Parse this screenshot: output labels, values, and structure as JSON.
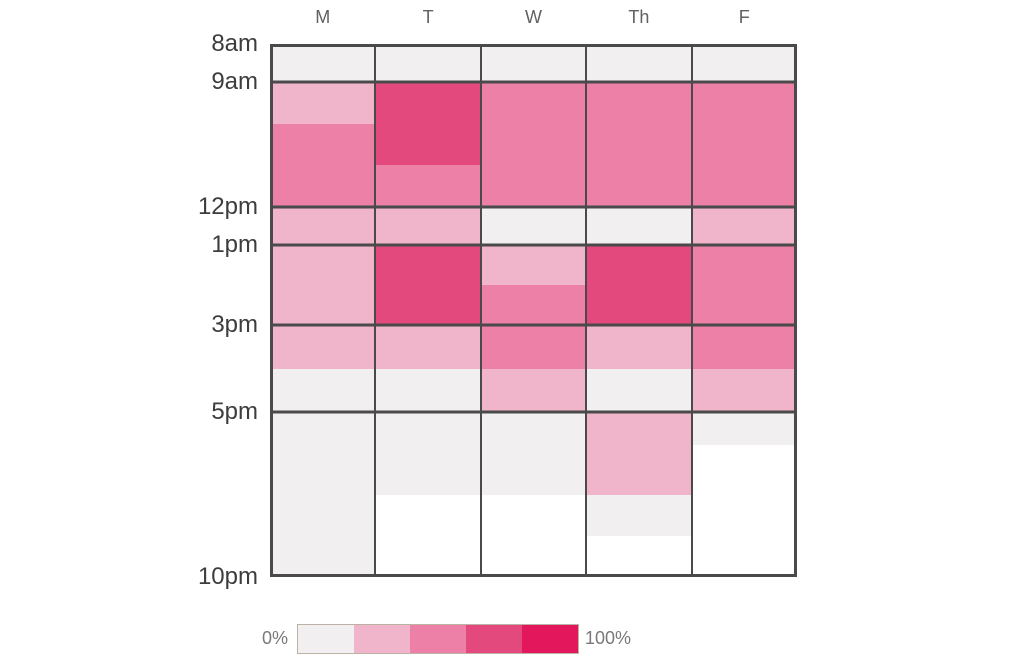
{
  "chart_data": {
    "type": "heatmap",
    "title": "",
    "description": "Weekly time-of-day intensity heatmap, Monday through Friday, 8am to 10pm, shaded by percent from 0% (light gray) to 100% (crimson)",
    "x_axis": {
      "categories": [
        "M",
        "T",
        "W",
        "Th",
        "F"
      ]
    },
    "y_axis": {
      "start_hour": 8,
      "end_hour": 22,
      "ticks": [
        {
          "label": "8am",
          "hour": 8
        },
        {
          "label": "9am",
          "hour": 9
        },
        {
          "label": "12pm",
          "hour": 12
        },
        {
          "label": "1pm",
          "hour": 13
        },
        {
          "label": "3pm",
          "hour": 15
        },
        {
          "label": "5pm",
          "hour": 17
        },
        {
          "label": "10pm",
          "hour": 22
        }
      ]
    },
    "levels": [
      {
        "level": 0,
        "color": "#ffffff",
        "percent_range": null,
        "meaning": "empty"
      },
      {
        "level": 1,
        "color": "#f1eff0",
        "percent_range": [
          0,
          20
        ]
      },
      {
        "level": 2,
        "color": "#f0b4cb",
        "percent_range": [
          20,
          40
        ]
      },
      {
        "level": 3,
        "color": "#ec80a7",
        "percent_range": [
          40,
          60
        ]
      },
      {
        "level": 4,
        "color": "#e3497c",
        "percent_range": [
          60,
          80
        ]
      },
      {
        "level": 5,
        "color": "#e2175c",
        "percent_range": [
          80,
          100
        ]
      }
    ],
    "series": [
      {
        "day": "M",
        "blocks": [
          {
            "start": 8,
            "end": 9,
            "level": 1
          },
          {
            "start": 9,
            "end": 10,
            "level": 2
          },
          {
            "start": 10,
            "end": 12,
            "level": 3
          },
          {
            "start": 12,
            "end": 13,
            "level": 2
          },
          {
            "start": 13,
            "end": 15,
            "level": 2
          },
          {
            "start": 15,
            "end": 16,
            "level": 2
          },
          {
            "start": 16,
            "end": 17,
            "level": 1
          },
          {
            "start": 17,
            "end": 22,
            "level": 1
          }
        ]
      },
      {
        "day": "T",
        "blocks": [
          {
            "start": 8,
            "end": 9,
            "level": 1
          },
          {
            "start": 9,
            "end": 11,
            "level": 4
          },
          {
            "start": 11,
            "end": 12,
            "level": 3
          },
          {
            "start": 12,
            "end": 13,
            "level": 2
          },
          {
            "start": 13,
            "end": 15,
            "level": 4
          },
          {
            "start": 15,
            "end": 16,
            "level": 2
          },
          {
            "start": 16,
            "end": 17,
            "level": 1
          },
          {
            "start": 17,
            "end": 19.5,
            "level": 1
          },
          {
            "start": 19.5,
            "end": 22,
            "level": 0
          }
        ]
      },
      {
        "day": "W",
        "blocks": [
          {
            "start": 8,
            "end": 9,
            "level": 1
          },
          {
            "start": 9,
            "end": 12,
            "level": 3
          },
          {
            "start": 12,
            "end": 13,
            "level": 1
          },
          {
            "start": 13,
            "end": 14,
            "level": 2
          },
          {
            "start": 14,
            "end": 15,
            "level": 3
          },
          {
            "start": 15,
            "end": 16,
            "level": 3
          },
          {
            "start": 16,
            "end": 17,
            "level": 2
          },
          {
            "start": 17,
            "end": 19.5,
            "level": 1
          },
          {
            "start": 19.5,
            "end": 22,
            "level": 0
          }
        ]
      },
      {
        "day": "Th",
        "blocks": [
          {
            "start": 8,
            "end": 9,
            "level": 1
          },
          {
            "start": 9,
            "end": 12,
            "level": 3
          },
          {
            "start": 12,
            "end": 13,
            "level": 1
          },
          {
            "start": 13,
            "end": 15,
            "level": 4
          },
          {
            "start": 15,
            "end": 16,
            "level": 2
          },
          {
            "start": 16,
            "end": 17,
            "level": 1
          },
          {
            "start": 17,
            "end": 19.5,
            "level": 2
          },
          {
            "start": 19.5,
            "end": 20.75,
            "level": 1
          },
          {
            "start": 20.75,
            "end": 22,
            "level": 0
          }
        ]
      },
      {
        "day": "F",
        "blocks": [
          {
            "start": 8,
            "end": 9,
            "level": 1
          },
          {
            "start": 9,
            "end": 12,
            "level": 3
          },
          {
            "start": 12,
            "end": 13,
            "level": 2
          },
          {
            "start": 13,
            "end": 15,
            "level": 3
          },
          {
            "start": 15,
            "end": 16,
            "level": 3
          },
          {
            "start": 16,
            "end": 17,
            "level": 2
          },
          {
            "start": 17,
            "end": 18,
            "level": 1
          },
          {
            "start": 18,
            "end": 22,
            "level": 0
          }
        ]
      }
    ],
    "legend": {
      "min_label": "0%",
      "max_label": "100%",
      "swatch_levels": [
        1,
        2,
        3,
        4,
        5
      ]
    },
    "grid": {
      "line_color": "#4a4a4a"
    }
  }
}
